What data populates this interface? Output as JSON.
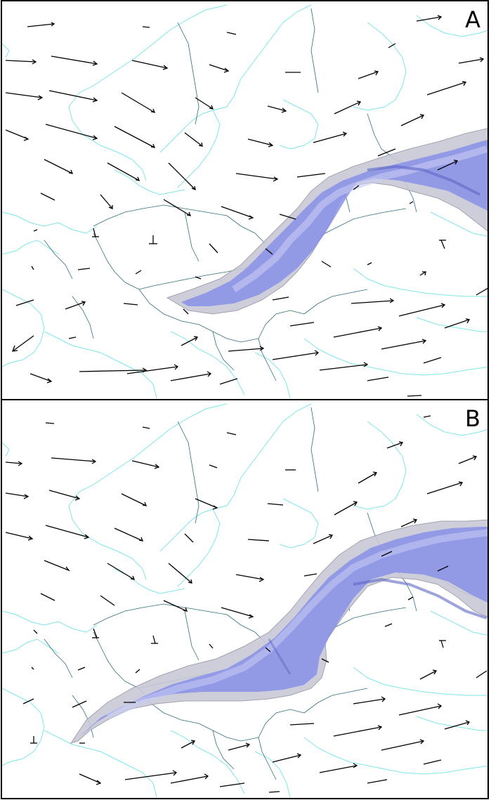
{
  "colors": {
    "coastline": "#7fe6e6",
    "border": "#2f6f7a",
    "plume_fill": "#7f88e6",
    "plume_light": "#c8ccf4",
    "plume_edge": "#9a9aa8",
    "arrow": "#000000",
    "frame": "#000000"
  },
  "panels": [
    {
      "label": "A"
    },
    {
      "label": "B"
    }
  ]
}
